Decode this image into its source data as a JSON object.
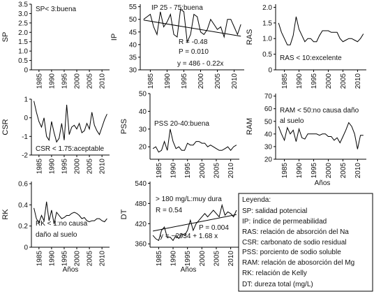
{
  "figure": {
    "x_axis_label": "Años"
  },
  "legend": {
    "title": "Leyenda:",
    "items": [
      "SP: salidad potencial",
      "IP: índice de permeabilidad",
      "RAS: relación de absorción del Na",
      "CSR: carbonato de sodio residual",
      "PSS: porciento de sodio soluble",
      "RAM: relación de abosorción del Mg",
      "RK: relación de Kelly",
      "DT: dureza total (mg/L)"
    ]
  },
  "chart_data": [
    {
      "type": "line",
      "ylabel": "SP",
      "x_ticks": [
        "1985",
        "1990",
        "1995",
        "2000",
        "2005",
        "2010"
      ],
      "yticks": [
        "0",
        "0.5",
        "1.0",
        "1.5",
        "2.0",
        "2.5",
        "3.0",
        "3.5"
      ],
      "ylim": [
        0,
        3.5
      ],
      "xlim": [
        1982,
        2013
      ],
      "annotations": [
        "SP< 3:buena"
      ],
      "series": [
        {
          "x": [],
          "values": []
        }
      ]
    },
    {
      "type": "line",
      "ylabel": "IP",
      "x_ticks": [
        "1985",
        "1990",
        "1995",
        "2000",
        "2005",
        "2010"
      ],
      "yticks": [
        "30",
        "35",
        "40",
        "45",
        "50",
        "55"
      ],
      "ylim": [
        30,
        56
      ],
      "xlim": [
        1982,
        2013
      ],
      "annotations": [
        "IP 25 - 75:buena",
        "R = -0.48",
        "P = 0.010",
        "y = 486 - 0.22x"
      ],
      "series": [
        {
          "x": [
            1983,
            1984,
            1985,
            1986,
            1987,
            1988,
            1989,
            1990,
            1991,
            1992,
            1993,
            1994,
            1995,
            1996,
            1997,
            1998,
            1999,
            2000,
            2001,
            2002,
            2003,
            2004,
            2005,
            2006,
            2007,
            2008,
            2009,
            2010,
            2011,
            2012
          ],
          "values": [
            50,
            51,
            52,
            47,
            44,
            53,
            47,
            49,
            52,
            44,
            43,
            54,
            53,
            41,
            44,
            52,
            51,
            45,
            44,
            46,
            50,
            48,
            46,
            47,
            43,
            50,
            50,
            47,
            44,
            48
          ]
        }
      ],
      "trend": {
        "x": [
          1983,
          2012
        ],
        "y": [
          49.7,
          43.3
        ]
      }
    },
    {
      "type": "line",
      "ylabel": "RAS",
      "x_ticks": [
        "1985",
        "1990",
        "1995",
        "2000",
        "2005",
        "2010"
      ],
      "yticks": [
        "0",
        "0.5",
        "1.0",
        "1.5",
        "2.0"
      ],
      "ylim": [
        0,
        2.1
      ],
      "xlim": [
        1982,
        2013
      ],
      "annotations": [
        "RAS < 10:excelente"
      ],
      "series": [
        {
          "x": [
            1983,
            1984,
            1985,
            1986,
            1987,
            1988,
            1989,
            1990,
            1991,
            1992,
            1993,
            1994,
            1995,
            1996,
            1997,
            1998,
            1999,
            2000,
            2001,
            2002,
            2003,
            2004,
            2005,
            2006,
            2007,
            2008,
            2009,
            2010,
            2011,
            2012
          ],
          "values": [
            1.5,
            1.2,
            1.0,
            0.8,
            0.8,
            1.1,
            1.7,
            1.3,
            1.1,
            0.9,
            1.0,
            1.0,
            0.9,
            0.9,
            1.1,
            1.25,
            1.25,
            1.25,
            1.2,
            1.2,
            1.2,
            1.0,
            0.9,
            0.95,
            1.0,
            1.0,
            0.95,
            0.9,
            1.0,
            1.15
          ]
        }
      ]
    },
    {
      "type": "line",
      "ylabel": "CSR",
      "x_ticks": [
        "1985",
        "1990",
        "1995",
        "2000",
        "2005",
        "2010"
      ],
      "yticks": [
        "-2",
        "-1",
        "0",
        "1"
      ],
      "ylim": [
        -2,
        1
      ],
      "xlim": [
        1982,
        2013
      ],
      "annotations": [
        "CSR < 1.75:aceptable"
      ],
      "series": [
        {
          "x": [
            1983,
            1984,
            1985,
            1986,
            1987,
            1988,
            1989,
            1990,
            1991,
            1992,
            1993,
            1994,
            1995,
            1996,
            1997,
            1998,
            1999,
            2000,
            2001,
            2002,
            2003,
            2004,
            2005,
            2006,
            2007,
            2008,
            2009,
            2010,
            2011,
            2012
          ],
          "values": [
            0.9,
            0.3,
            -0.2,
            -0.5,
            0.0,
            -1.0,
            -1.2,
            -0.2,
            -0.8,
            -1.3,
            -1.1,
            -0.3,
            -1.2,
            0.7,
            -0.9,
            -0.5,
            -0.4,
            -0.6,
            -0.3,
            -0.8,
            -0.7,
            -0.3,
            -0.6,
            0.3,
            -0.4,
            -0.7,
            -0.9,
            -0.5,
            -0.1,
            0.2
          ]
        }
      ]
    },
    {
      "type": "line",
      "ylabel": "PSS",
      "x_ticks": [
        "1985",
        "1990",
        "1995",
        "2000",
        "2005",
        "2010"
      ],
      "yticks": [
        "20",
        "30",
        "40",
        "50"
      ],
      "ylim": [
        13,
        50
      ],
      "xlim": [
        1982,
        2013
      ],
      "annotations": [
        "PSS 20-40:buena"
      ],
      "series": [
        {
          "x": [
            1983,
            1984,
            1985,
            1986,
            1987,
            1988,
            1989,
            1990,
            1991,
            1992,
            1993,
            1994,
            1995,
            1996,
            1997,
            1998,
            1999,
            2000,
            2001,
            2002,
            2003,
            2004,
            2005,
            2006,
            2007,
            2008,
            2009,
            2010,
            2011,
            2012
          ],
          "values": [
            19,
            20,
            17,
            18,
            23,
            18,
            30,
            23,
            19,
            20,
            18,
            18,
            22,
            21,
            21,
            23,
            23,
            22,
            22,
            20,
            21,
            20,
            19,
            18,
            18,
            19,
            20,
            18,
            20,
            21
          ]
        }
      ]
    },
    {
      "type": "line",
      "ylabel": "RAM",
      "x_ticks": [
        "1985",
        "1990",
        "1995",
        "2000",
        "2005",
        "2010"
      ],
      "yticks": [
        "20",
        "30",
        "40",
        "50",
        "60",
        "70"
      ],
      "ylim": [
        20,
        72
      ],
      "xlim": [
        1982,
        2013
      ],
      "annotations": [
        "RAM < 50:no causa daño",
        "al suelo"
      ],
      "series": [
        {
          "x": [
            1983,
            1984,
            1985,
            1986,
            1987,
            1988,
            1989,
            1990,
            1991,
            1992,
            1993,
            1994,
            1995,
            1996,
            1997,
            1998,
            1999,
            2000,
            2001,
            2002,
            2003,
            2004,
            2005,
            2006,
            2007,
            2008,
            2009,
            2010,
            2011,
            2012
          ],
          "values": [
            46,
            40,
            35,
            45,
            40,
            43,
            34,
            44,
            37,
            36,
            40,
            40,
            40,
            40,
            39,
            40,
            40,
            38,
            38,
            35,
            37,
            33,
            38,
            43,
            49,
            46,
            40,
            28,
            39,
            39
          ]
        }
      ]
    },
    {
      "type": "line",
      "ylabel": "RK",
      "x_ticks": [
        "1985",
        "1990",
        "1995",
        "2000",
        "2005",
        "2010"
      ],
      "yticks": [
        "0",
        "0.2",
        "0.4",
        "0.6"
      ],
      "ylim": [
        0,
        0.62
      ],
      "xlim": [
        1982,
        2013
      ],
      "annotations": [
        "RK < 1:no causa",
        "daño al suelo"
      ],
      "series": [
        {
          "x": [
            1983,
            1984,
            1985,
            1986,
            1987,
            1988,
            1989,
            1990,
            1991,
            1992,
            1993,
            1994,
            1995,
            1996,
            1997,
            1998,
            1999,
            2000,
            2001,
            2002,
            2003,
            2004,
            2005,
            2006,
            2007,
            2008,
            2009,
            2010,
            2011,
            2012
          ],
          "values": [
            0.37,
            0.27,
            0.23,
            0.3,
            0.25,
            0.43,
            0.25,
            0.35,
            0.22,
            0.33,
            0.3,
            0.27,
            0.28,
            0.3,
            0.3,
            0.32,
            0.33,
            0.32,
            0.3,
            0.27,
            0.28,
            0.25,
            0.24,
            0.25,
            0.25,
            0.27,
            0.27,
            0.25,
            0.24,
            0.27
          ]
        }
      ]
    },
    {
      "type": "line",
      "ylabel": "DT",
      "x_ticks": [
        "1985",
        "1990",
        "1995",
        "2000",
        "2005",
        "2010"
      ],
      "yticks": [
        "360",
        "420",
        "480",
        "540"
      ],
      "ylim": [
        350,
        545
      ],
      "xlim": [
        1982,
        2013
      ],
      "annotations": [
        "> 180 mg/L:muy dura",
        "R = 0.54",
        "P = 0.004",
        "y = −2934 + 1.68 x"
      ],
      "series": [
        {
          "x": [
            1983,
            1984,
            1985,
            1986,
            1987,
            1988,
            1989,
            1990,
            1991,
            1992,
            1993,
            1994,
            1995,
            1996,
            1997,
            1998,
            1999,
            2000,
            2001,
            2002,
            2003,
            2004,
            2005,
            2006,
            2007,
            2008,
            2009,
            2010,
            2011,
            2012
          ],
          "values": [
            385,
            375,
            370,
            400,
            410,
            378,
            380,
            370,
            385,
            376,
            390,
            385,
            400,
            430,
            400,
            420,
            430,
            440,
            450,
            440,
            450,
            460,
            450,
            440,
            475,
            445,
            455,
            450,
            440,
            460
          ]
        }
      ],
      "trend": {
        "x": [
          1983,
          2012
        ],
        "y": [
          398,
          447
        ]
      }
    }
  ]
}
